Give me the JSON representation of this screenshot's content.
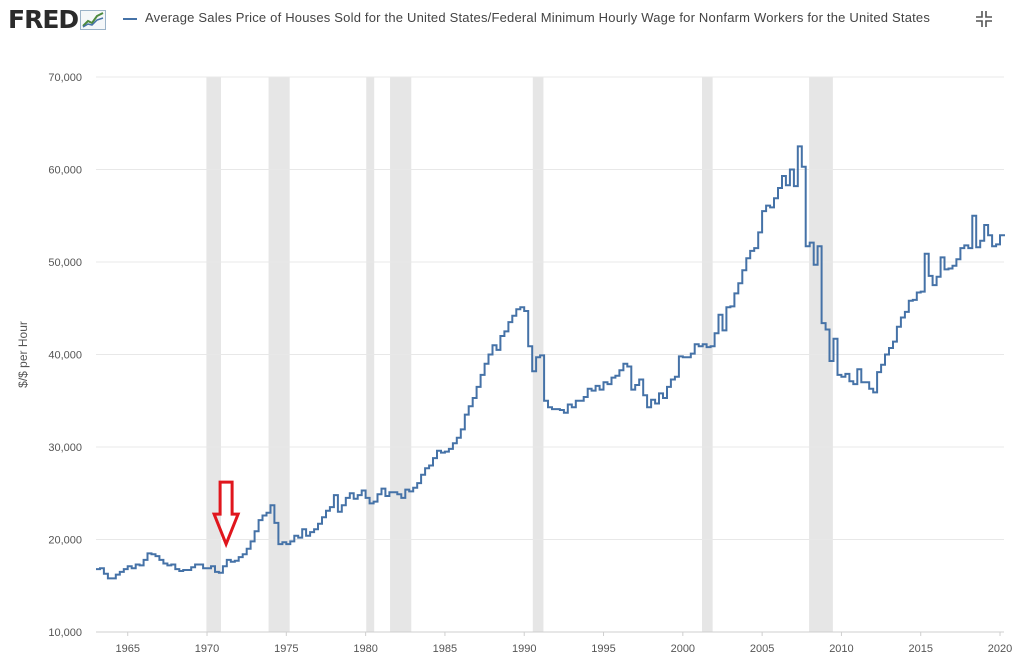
{
  "app": {
    "logo_text": "FRED",
    "legend_text": "Average Sales Price of Houses Sold for the United States/Federal Minimum Hourly Wage for Nonfarm Workers for the United States"
  },
  "icons": {
    "logo": "fred-chart-logo-icon",
    "expand": "expand-icon",
    "annotation": "red-down-arrow"
  },
  "colors": {
    "series": "#4572a7",
    "recession": "#e6e6e6",
    "arrow": "#e0161d",
    "grid": "#e8e8e8"
  },
  "chart_data": {
    "type": "line",
    "title": "Average Sales Price of Houses Sold for the United States/Federal Minimum Hourly Wage for Nonfarm Workers for the United States",
    "ylabel": "$/$ per Hour",
    "xlabel": "",
    "xlim": [
      1963.0,
      2020.25
    ],
    "ylim": [
      10000,
      70000
    ],
    "yticks": [
      10000,
      20000,
      30000,
      40000,
      50000,
      60000,
      70000
    ],
    "ytick_labels": [
      "10,000",
      "20,000",
      "30,000",
      "40,000",
      "50,000",
      "60,000",
      "70,000"
    ],
    "xticks": [
      1965,
      1970,
      1975,
      1980,
      1985,
      1990,
      1995,
      2000,
      2005,
      2010,
      2015,
      2020
    ],
    "xtick_labels": [
      "1965",
      "1970",
      "1975",
      "1980",
      "1985",
      "1990",
      "1995",
      "2000",
      "2005",
      "2010",
      "2015",
      "2020"
    ],
    "grid": true,
    "step": true,
    "recessions": [
      [
        1969.96,
        1970.88
      ],
      [
        1973.88,
        1975.21
      ],
      [
        1980.04,
        1980.54
      ],
      [
        1981.54,
        1982.88
      ],
      [
        1990.54,
        1991.21
      ],
      [
        2001.21,
        2001.88
      ],
      [
        2007.96,
        2009.46
      ]
    ],
    "annotation": {
      "type": "arrow",
      "x": 1971.2,
      "y": 19500
    },
    "series": [
      {
        "points": [
          [
            1963.0,
            16800
          ],
          [
            1963.25,
            16900
          ],
          [
            1963.5,
            16300
          ],
          [
            1963.75,
            15800
          ],
          [
            1964.0,
            15800
          ],
          [
            1964.25,
            16200
          ],
          [
            1964.5,
            16500
          ],
          [
            1964.75,
            16800
          ],
          [
            1965.0,
            17100
          ],
          [
            1965.25,
            16900
          ],
          [
            1965.5,
            17300
          ],
          [
            1965.75,
            17200
          ],
          [
            1966.0,
            17800
          ],
          [
            1966.25,
            18500
          ],
          [
            1966.5,
            18400
          ],
          [
            1966.75,
            18200
          ],
          [
            1967.0,
            17800
          ],
          [
            1967.25,
            17400
          ],
          [
            1967.5,
            17200
          ],
          [
            1967.75,
            17300
          ],
          [
            1968.0,
            16800
          ],
          [
            1968.25,
            16600
          ],
          [
            1968.5,
            16700
          ],
          [
            1968.75,
            16700
          ],
          [
            1969.0,
            17000
          ],
          [
            1969.25,
            17300
          ],
          [
            1969.5,
            17300
          ],
          [
            1969.75,
            16900
          ],
          [
            1970.0,
            16900
          ],
          [
            1970.25,
            17100
          ],
          [
            1970.5,
            16500
          ],
          [
            1970.75,
            16400
          ],
          [
            1971.0,
            17100
          ],
          [
            1971.25,
            17800
          ],
          [
            1971.5,
            17600
          ],
          [
            1971.75,
            17700
          ],
          [
            1972.0,
            18100
          ],
          [
            1972.25,
            18400
          ],
          [
            1972.5,
            19000
          ],
          [
            1972.75,
            19800
          ],
          [
            1973.0,
            20900
          ],
          [
            1973.25,
            22100
          ],
          [
            1973.5,
            22600
          ],
          [
            1973.75,
            22900
          ],
          [
            1974.0,
            23700
          ],
          [
            1974.25,
            21800
          ],
          [
            1974.5,
            19500
          ],
          [
            1974.75,
            19700
          ],
          [
            1975.0,
            19500
          ],
          [
            1975.25,
            19800
          ],
          [
            1975.5,
            20400
          ],
          [
            1975.75,
            20200
          ],
          [
            1976.0,
            21100
          ],
          [
            1976.25,
            20400
          ],
          [
            1976.5,
            20800
          ],
          [
            1976.75,
            21100
          ],
          [
            1977.0,
            21700
          ],
          [
            1977.25,
            22400
          ],
          [
            1977.5,
            23100
          ],
          [
            1977.75,
            23500
          ],
          [
            1978.0,
            24800
          ],
          [
            1978.25,
            23000
          ],
          [
            1978.5,
            23700
          ],
          [
            1978.75,
            24500
          ],
          [
            1979.0,
            25000
          ],
          [
            1979.25,
            24400
          ],
          [
            1979.5,
            24800
          ],
          [
            1979.75,
            25300
          ],
          [
            1980.0,
            24500
          ],
          [
            1980.25,
            23900
          ],
          [
            1980.5,
            24100
          ],
          [
            1980.75,
            24900
          ],
          [
            1981.0,
            25500
          ],
          [
            1981.25,
            24700
          ],
          [
            1981.5,
            25100
          ],
          [
            1981.75,
            25100
          ],
          [
            1982.0,
            24900
          ],
          [
            1982.25,
            24500
          ],
          [
            1982.5,
            25400
          ],
          [
            1982.75,
            25200
          ],
          [
            1983.0,
            25600
          ],
          [
            1983.25,
            26100
          ],
          [
            1983.5,
            27000
          ],
          [
            1983.75,
            27700
          ],
          [
            1984.0,
            28000
          ],
          [
            1984.25,
            28800
          ],
          [
            1984.5,
            29600
          ],
          [
            1984.75,
            29400
          ],
          [
            1985.0,
            29500
          ],
          [
            1985.25,
            29800
          ],
          [
            1985.5,
            30400
          ],
          [
            1985.75,
            31000
          ],
          [
            1986.0,
            31900
          ],
          [
            1986.25,
            33500
          ],
          [
            1986.5,
            34400
          ],
          [
            1986.75,
            35300
          ],
          [
            1987.0,
            36500
          ],
          [
            1987.25,
            37800
          ],
          [
            1987.5,
            39000
          ],
          [
            1987.75,
            40000
          ],
          [
            1988.0,
            41000
          ],
          [
            1988.25,
            40500
          ],
          [
            1988.5,
            42000
          ],
          [
            1988.75,
            42500
          ],
          [
            1989.0,
            43500
          ],
          [
            1989.25,
            44200
          ],
          [
            1989.5,
            44900
          ],
          [
            1989.75,
            45100
          ],
          [
            1990.0,
            44700
          ],
          [
            1990.25,
            40900
          ],
          [
            1990.5,
            38200
          ],
          [
            1990.75,
            39700
          ],
          [
            1991.0,
            39900
          ],
          [
            1991.25,
            35000
          ],
          [
            1991.5,
            34300
          ],
          [
            1991.75,
            34100
          ],
          [
            1992.0,
            34100
          ],
          [
            1992.25,
            34000
          ],
          [
            1992.5,
            33700
          ],
          [
            1992.75,
            34600
          ],
          [
            1993.0,
            34300
          ],
          [
            1993.25,
            35000
          ],
          [
            1993.5,
            35000
          ],
          [
            1993.75,
            35400
          ],
          [
            1994.0,
            36300
          ],
          [
            1994.25,
            36100
          ],
          [
            1994.5,
            36600
          ],
          [
            1994.75,
            36200
          ],
          [
            1995.0,
            37000
          ],
          [
            1995.25,
            36800
          ],
          [
            1995.5,
            37500
          ],
          [
            1995.75,
            37700
          ],
          [
            1996.0,
            38300
          ],
          [
            1996.25,
            39000
          ],
          [
            1996.5,
            38700
          ],
          [
            1996.75,
            36200
          ],
          [
            1997.0,
            36700
          ],
          [
            1997.25,
            37300
          ],
          [
            1997.5,
            35600
          ],
          [
            1997.75,
            34300
          ],
          [
            1998.0,
            35100
          ],
          [
            1998.25,
            34700
          ],
          [
            1998.5,
            35800
          ],
          [
            1998.75,
            35300
          ],
          [
            1999.0,
            36500
          ],
          [
            1999.25,
            37300
          ],
          [
            1999.5,
            37600
          ],
          [
            1999.75,
            39800
          ],
          [
            2000.0,
            39700
          ],
          [
            2000.25,
            39700
          ],
          [
            2000.5,
            40100
          ],
          [
            2000.75,
            41100
          ],
          [
            2001.0,
            40900
          ],
          [
            2001.25,
            41100
          ],
          [
            2001.5,
            40800
          ],
          [
            2001.75,
            40900
          ],
          [
            2002.0,
            42300
          ],
          [
            2002.25,
            44300
          ],
          [
            2002.5,
            42600
          ],
          [
            2002.75,
            45100
          ],
          [
            2003.0,
            45200
          ],
          [
            2003.25,
            46600
          ],
          [
            2003.5,
            47700
          ],
          [
            2003.75,
            49100
          ],
          [
            2004.0,
            50400
          ],
          [
            2004.25,
            51200
          ],
          [
            2004.5,
            51500
          ],
          [
            2004.75,
            53200
          ],
          [
            2005.0,
            55500
          ],
          [
            2005.25,
            56100
          ],
          [
            2005.5,
            55900
          ],
          [
            2005.75,
            56900
          ],
          [
            2006.0,
            58000
          ],
          [
            2006.25,
            59300
          ],
          [
            2006.5,
            58300
          ],
          [
            2006.75,
            60000
          ],
          [
            2007.0,
            58200
          ],
          [
            2007.25,
            62500
          ],
          [
            2007.5,
            60300
          ],
          [
            2007.75,
            51700
          ],
          [
            2008.0,
            52100
          ],
          [
            2008.25,
            49700
          ],
          [
            2008.5,
            51700
          ],
          [
            2008.75,
            43400
          ],
          [
            2009.0,
            42700
          ],
          [
            2009.25,
            39300
          ],
          [
            2009.5,
            41700
          ],
          [
            2009.75,
            37800
          ],
          [
            2010.0,
            37600
          ],
          [
            2010.25,
            37900
          ],
          [
            2010.5,
            37100
          ],
          [
            2010.75,
            36800
          ],
          [
            2011.0,
            38400
          ],
          [
            2011.25,
            37000
          ],
          [
            2011.5,
            37000
          ],
          [
            2011.75,
            36300
          ],
          [
            2012.0,
            35900
          ],
          [
            2012.25,
            38100
          ],
          [
            2012.5,
            38900
          ],
          [
            2012.75,
            40000
          ],
          [
            2013.0,
            40700
          ],
          [
            2013.25,
            41400
          ],
          [
            2013.5,
            43000
          ],
          [
            2013.75,
            44000
          ],
          [
            2014.0,
            44600
          ],
          [
            2014.25,
            45800
          ],
          [
            2014.5,
            45900
          ],
          [
            2014.75,
            46700
          ],
          [
            2015.0,
            46800
          ],
          [
            2015.25,
            50900
          ],
          [
            2015.5,
            48500
          ],
          [
            2015.75,
            47500
          ],
          [
            2016.0,
            48400
          ],
          [
            2016.25,
            50500
          ],
          [
            2016.5,
            49200
          ],
          [
            2016.75,
            49300
          ],
          [
            2017.0,
            49600
          ],
          [
            2017.25,
            50300
          ],
          [
            2017.5,
            51500
          ],
          [
            2017.75,
            51800
          ],
          [
            2018.0,
            51500
          ],
          [
            2018.25,
            55000
          ],
          [
            2018.5,
            51600
          ],
          [
            2018.75,
            52300
          ],
          [
            2019.0,
            54000
          ],
          [
            2019.25,
            52900
          ],
          [
            2019.5,
            51700
          ],
          [
            2019.75,
            51900
          ],
          [
            2020.0,
            52900
          ],
          [
            2020.25,
            53000
          ]
        ]
      }
    ]
  }
}
